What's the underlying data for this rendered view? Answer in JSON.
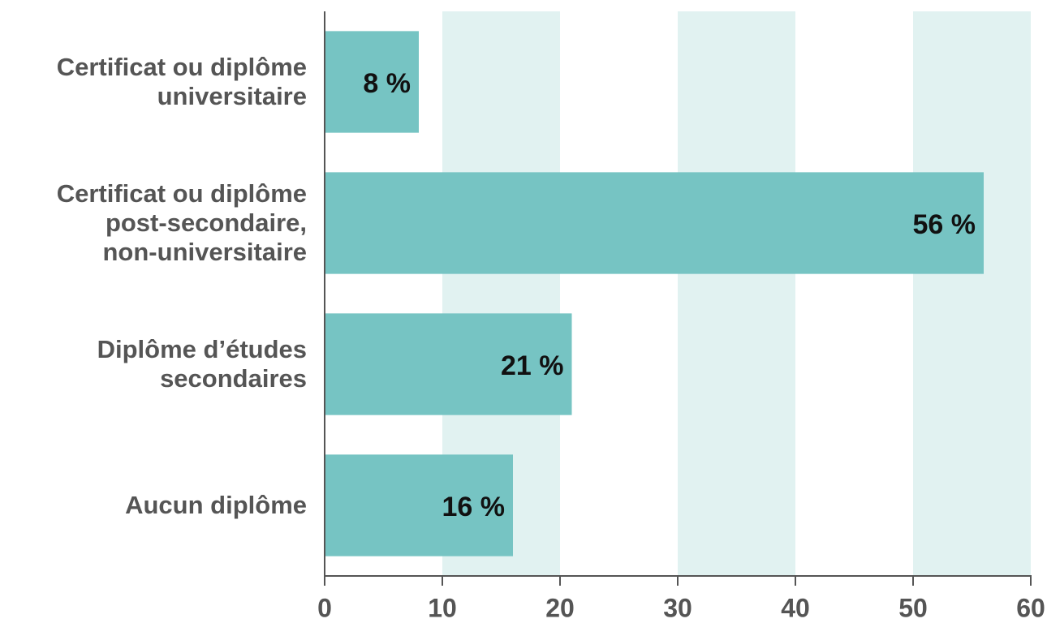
{
  "chart_data": {
    "type": "bar",
    "orientation": "horizontal",
    "categories": [
      "Certificat ou diplôme\nuniversitaire",
      "Certificat ou diplôme\npost-secondaire,\nnon-universitaire",
      "Diplôme d’études\nsecondaires",
      "Aucun diplôme"
    ],
    "values": [
      8,
      56,
      21,
      16
    ],
    "value_labels": [
      "8 %",
      "56 %",
      "21 %",
      "16 %"
    ],
    "color": "#76c4c3",
    "xlim": [
      0,
      60
    ],
    "xticks": [
      0,
      10,
      20,
      30,
      40,
      50,
      60
    ],
    "grid": true,
    "grid_color": "#e1f2f1"
  }
}
